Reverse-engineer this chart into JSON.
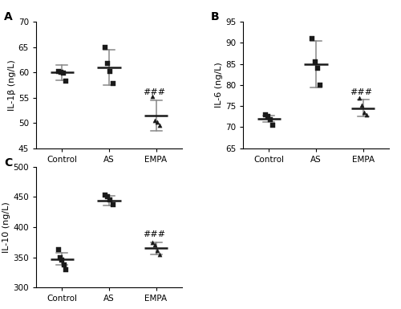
{
  "panel_A": {
    "label": "A",
    "ylabel": "IL-1β (ng/L)",
    "ylim": [
      45,
      70
    ],
    "yticks": [
      45,
      50,
      55,
      60,
      65,
      70
    ],
    "groups": [
      "Control",
      "AS",
      "EMPA"
    ],
    "means": [
      60.0,
      61.0,
      51.5
    ],
    "errors": [
      1.5,
      3.5,
      3.0
    ],
    "scatter": {
      "Control": [
        60.2,
        60.0,
        59.8,
        58.2
      ],
      "AS": [
        65.0,
        61.8,
        60.2,
        57.8
      ],
      "EMPA": [
        55.2,
        50.5,
        50.2,
        49.5
      ]
    },
    "sig_group": "EMPA",
    "sig_text": "###",
    "marker_control": "s",
    "marker_as": "s",
    "marker_empa": "^"
  },
  "panel_B": {
    "label": "B",
    "ylabel": "IL-6 (ng/L)",
    "ylim": [
      65,
      95
    ],
    "yticks": [
      65,
      70,
      75,
      80,
      85,
      90,
      95
    ],
    "groups": [
      "Control",
      "AS",
      "EMPA"
    ],
    "means": [
      72.0,
      85.0,
      74.5
    ],
    "errors": [
      0.8,
      5.5,
      2.0
    ],
    "scatter": {
      "Control": [
        73.0,
        72.5,
        71.8,
        70.5
      ],
      "AS": [
        91.0,
        85.5,
        84.0,
        80.0
      ],
      "EMPA": [
        77.0,
        75.2,
        73.5,
        73.0
      ]
    },
    "sig_group": "EMPA",
    "sig_text": "###",
    "marker_control": "s",
    "marker_as": "s",
    "marker_empa": "^"
  },
  "panel_C": {
    "label": "C",
    "ylabel": "IL-10 (ng/L)",
    "ylim": [
      300,
      500
    ],
    "yticks": [
      300,
      350,
      400,
      450,
      500
    ],
    "groups": [
      "Control",
      "AS",
      "EMPA"
    ],
    "means": [
      347.0,
      444.0,
      365.0
    ],
    "errors": [
      10.0,
      8.0,
      10.0
    ],
    "scatter": {
      "Control": [
        363.0,
        350.0,
        345.0,
        338.0,
        330.0
      ],
      "AS": [
        453.0,
        451.0,
        445.0,
        437.0
      ],
      "EMPA": [
        375.0,
        370.0,
        362.0,
        355.0
      ]
    },
    "sig_group": "EMPA",
    "sig_text": "###",
    "marker_control": "s",
    "marker_as": "s",
    "marker_empa": "^"
  },
  "dot_color": "#1a1a1a",
  "mean_line_color": "#1a1a1a",
  "error_color": "#888888",
  "fontsize_label": 8,
  "fontsize_tick": 7.5,
  "fontsize_panel": 10,
  "fontsize_sig": 8
}
